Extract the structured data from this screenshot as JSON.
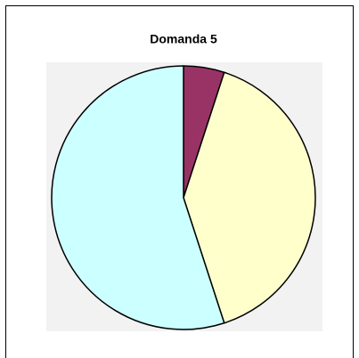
{
  "chart_data": {
    "type": "pie",
    "title": "Domanda 5",
    "values": [
      5,
      40,
      55
    ],
    "colors": [
      "#993366",
      "#ffffcc",
      "#ccffff"
    ]
  }
}
